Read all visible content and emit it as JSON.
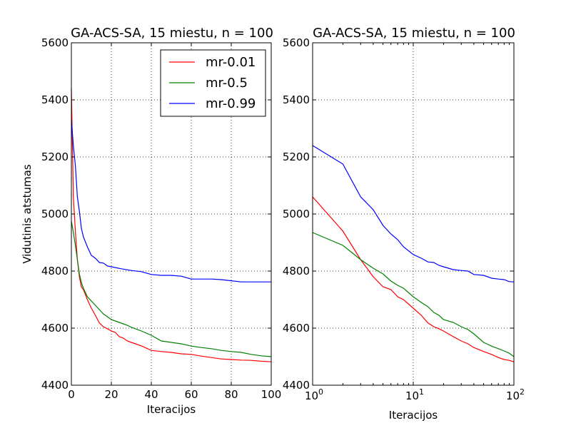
{
  "colors": {
    "mr-0.01": "#ff0000",
    "mr-0.5": "#008000",
    "mr-0.99": "#0000ff"
  },
  "chart_data": [
    {
      "type": "line",
      "title": "GA-ACS-SA, 15 miestu, n = 100",
      "xlabel": "Iteracijos",
      "ylabel": "Vidutinis atstumas",
      "xscale": "linear",
      "xlim": [
        0,
        100
      ],
      "ylim": [
        4400,
        5600
      ],
      "xticks": [
        0,
        20,
        40,
        60,
        80,
        100
      ],
      "xtick_labels": [
        "0",
        "20",
        "40",
        "60",
        "80",
        "100"
      ],
      "yticks": [
        4400,
        4600,
        4800,
        5000,
        5200,
        5400,
        5600
      ],
      "ytick_labels": [
        "4400",
        "4600",
        "4800",
        "5000",
        "5200",
        "5400",
        "5600"
      ],
      "grid": true,
      "legend": "top-right",
      "series": [
        {
          "name": "mr-0.01",
          "x": [
            0,
            1,
            2,
            3,
            4,
            5,
            6,
            8,
            10,
            12,
            14,
            16,
            18,
            20,
            22,
            24,
            26,
            28,
            30,
            35,
            40,
            45,
            50,
            55,
            60,
            65,
            70,
            75,
            80,
            85,
            90,
            95,
            100
          ],
          "y": [
            5440,
            5060,
            4940,
            4840,
            4780,
            4745,
            4735,
            4700,
            4670,
            4645,
            4618,
            4605,
            4598,
            4590,
            4585,
            4570,
            4565,
            4555,
            4550,
            4538,
            4522,
            4518,
            4515,
            4510,
            4508,
            4502,
            4497,
            4492,
            4490,
            4488,
            4487,
            4484,
            4482
          ]
        },
        {
          "name": "mr-0.5",
          "x": [
            0,
            1,
            2,
            3,
            4,
            5,
            6,
            8,
            10,
            12,
            14,
            16,
            18,
            20,
            22,
            24,
            26,
            28,
            30,
            35,
            40,
            45,
            50,
            55,
            60,
            65,
            70,
            75,
            80,
            85,
            90,
            95,
            100
          ],
          "y": [
            4975,
            4935,
            4890,
            4840,
            4790,
            4760,
            4740,
            4710,
            4695,
            4680,
            4665,
            4650,
            4640,
            4630,
            4625,
            4620,
            4615,
            4610,
            4603,
            4590,
            4575,
            4555,
            4550,
            4545,
            4537,
            4532,
            4528,
            4522,
            4518,
            4515,
            4508,
            4503,
            4500
          ]
        },
        {
          "name": "mr-0.99",
          "x": [
            0,
            1,
            2,
            3,
            4,
            5,
            6,
            8,
            10,
            12,
            14,
            16,
            18,
            20,
            25,
            30,
            35,
            40,
            45,
            50,
            55,
            60,
            65,
            70,
            75,
            80,
            85,
            90,
            95,
            100
          ],
          "y": [
            5330,
            5240,
            5170,
            5060,
            5010,
            4950,
            4920,
            4885,
            4855,
            4845,
            4830,
            4828,
            4818,
            4815,
            4808,
            4802,
            4798,
            4788,
            4785,
            4785,
            4782,
            4772,
            4772,
            4772,
            4770,
            4766,
            4762,
            4762,
            4762,
            4762
          ]
        }
      ]
    },
    {
      "type": "line",
      "title": "GA-ACS-SA, 15 miestu, n = 100",
      "xlabel": "Iteracijos",
      "xscale": "log",
      "xlim": [
        1,
        100
      ],
      "ylim": [
        4400,
        5600
      ],
      "xtick_labels": [
        {
          "value": 1,
          "base": "10",
          "exp": "0"
        },
        {
          "value": 10,
          "base": "10",
          "exp": "1"
        },
        {
          "value": 100,
          "base": "10",
          "exp": "2"
        }
      ],
      "yticks": [
        4400,
        4600,
        4800,
        5000,
        5200,
        5400,
        5600
      ],
      "ytick_labels": [
        "4400",
        "4600",
        "4800",
        "5000",
        "5200",
        "5400",
        "5600"
      ],
      "grid": true,
      "series": [
        {
          "name": "mr-0.01",
          "x": [
            1,
            2,
            3,
            4,
            5,
            6,
            7,
            8,
            10,
            12,
            14,
            16,
            18,
            20,
            25,
            30,
            35,
            40,
            50,
            60,
            70,
            80,
            90,
            100
          ],
          "y": [
            5060,
            4940,
            4840,
            4780,
            4745,
            4735,
            4710,
            4700,
            4670,
            4645,
            4618,
            4605,
            4598,
            4590,
            4570,
            4555,
            4545,
            4532,
            4518,
            4508,
            4497,
            4490,
            4487,
            4482
          ]
        },
        {
          "name": "mr-0.5",
          "x": [
            1,
            2,
            3,
            4,
            5,
            6,
            7,
            8,
            10,
            12,
            14,
            16,
            18,
            20,
            25,
            30,
            35,
            40,
            50,
            60,
            70,
            80,
            90,
            100
          ],
          "y": [
            4935,
            4890,
            4840,
            4810,
            4790,
            4765,
            4750,
            4740,
            4710,
            4690,
            4675,
            4655,
            4645,
            4630,
            4620,
            4605,
            4595,
            4580,
            4550,
            4537,
            4528,
            4520,
            4512,
            4500
          ]
        },
        {
          "name": "mr-0.99",
          "x": [
            1,
            2,
            3,
            4,
            5,
            6,
            7,
            8,
            10,
            12,
            14,
            16,
            18,
            20,
            25,
            30,
            35,
            40,
            50,
            60,
            70,
            80,
            90,
            100
          ],
          "y": [
            5240,
            5175,
            5060,
            5015,
            4960,
            4930,
            4910,
            4885,
            4858,
            4845,
            4832,
            4830,
            4820,
            4815,
            4805,
            4802,
            4800,
            4788,
            4785,
            4775,
            4772,
            4770,
            4763,
            4762
          ]
        }
      ]
    }
  ]
}
